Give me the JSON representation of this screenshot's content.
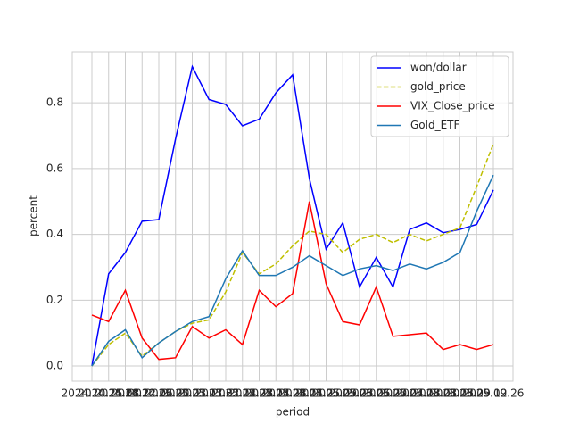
{
  "chart_data": {
    "type": "line",
    "xlabel": "period",
    "ylabel": "percent",
    "categories": [
      "2024.10.25",
      "2024.11.08",
      "2024.11.22",
      "2024.12.06",
      "2024.12.20",
      "2025.01.03",
      "2025.01.17",
      "2025.01.31",
      "2025.02.14",
      "2025.02.28",
      "2025.03.14",
      "2025.03.28",
      "2025.04.11",
      "2025.04.25",
      "2025.05.09",
      "2025.05.23",
      "2025.06.06",
      "2025.06.20",
      "2025.07.04",
      "2025.07.18",
      "2025.08.01",
      "2025.08.15",
      "2025.08.29",
      "2025.09.12",
      "2025.09.26"
    ],
    "series": [
      {
        "name": "won/dollar",
        "color": "#0000ff",
        "dashed": false,
        "values": [
          0,
          0.28,
          0.345,
          0.44,
          0.445,
          0.69,
          0.91,
          0.81,
          0.795,
          0.73,
          0.75,
          0.83,
          0.885,
          0.57,
          0.355,
          0.435,
          0.24,
          0.33,
          0.24,
          0.415,
          0.435,
          0.405,
          0.415,
          0.43,
          0.535
        ]
      },
      {
        "name": "gold_price",
        "color": "#bfbf00",
        "dashed": true,
        "values": [
          0,
          0.065,
          0.1,
          0.03,
          0.07,
          0.105,
          0.13,
          0.14,
          0.225,
          0.345,
          0.28,
          0.31,
          0.365,
          0.41,
          0.4,
          0.345,
          0.385,
          0.4,
          0.375,
          0.4,
          0.38,
          0.4,
          0.42,
          0.545,
          0.675
        ]
      },
      {
        "name": "VIX_Close_price",
        "color": "#ff0000",
        "dashed": false,
        "values": [
          0.155,
          0.135,
          0.23,
          0.085,
          0.02,
          0.025,
          0.12,
          0.085,
          0.11,
          0.065,
          0.23,
          0.18,
          0.22,
          0.5,
          0.25,
          0.135,
          0.125,
          0.24,
          0.09,
          0.095,
          0.1,
          0.05,
          0.065,
          0.05,
          0.065
        ]
      },
      {
        "name": "Gold_ETF",
        "color": "#1f77b4",
        "dashed": false,
        "values": [
          0,
          0.075,
          0.11,
          0.025,
          0.07,
          0.105,
          0.135,
          0.15,
          0.265,
          0.35,
          0.275,
          0.275,
          0.3,
          0.335,
          0.305,
          0.275,
          0.295,
          0.305,
          0.29,
          0.31,
          0.295,
          0.315,
          0.345,
          0.47,
          0.58
        ]
      }
    ],
    "ylim": [
      -0.046,
      0.955
    ],
    "yticks": [
      {
        "value": 0,
        "label": "0.0"
      },
      0.2,
      0.4,
      0.6,
      0.8
    ],
    "grid": true,
    "legend": "upper right"
  }
}
